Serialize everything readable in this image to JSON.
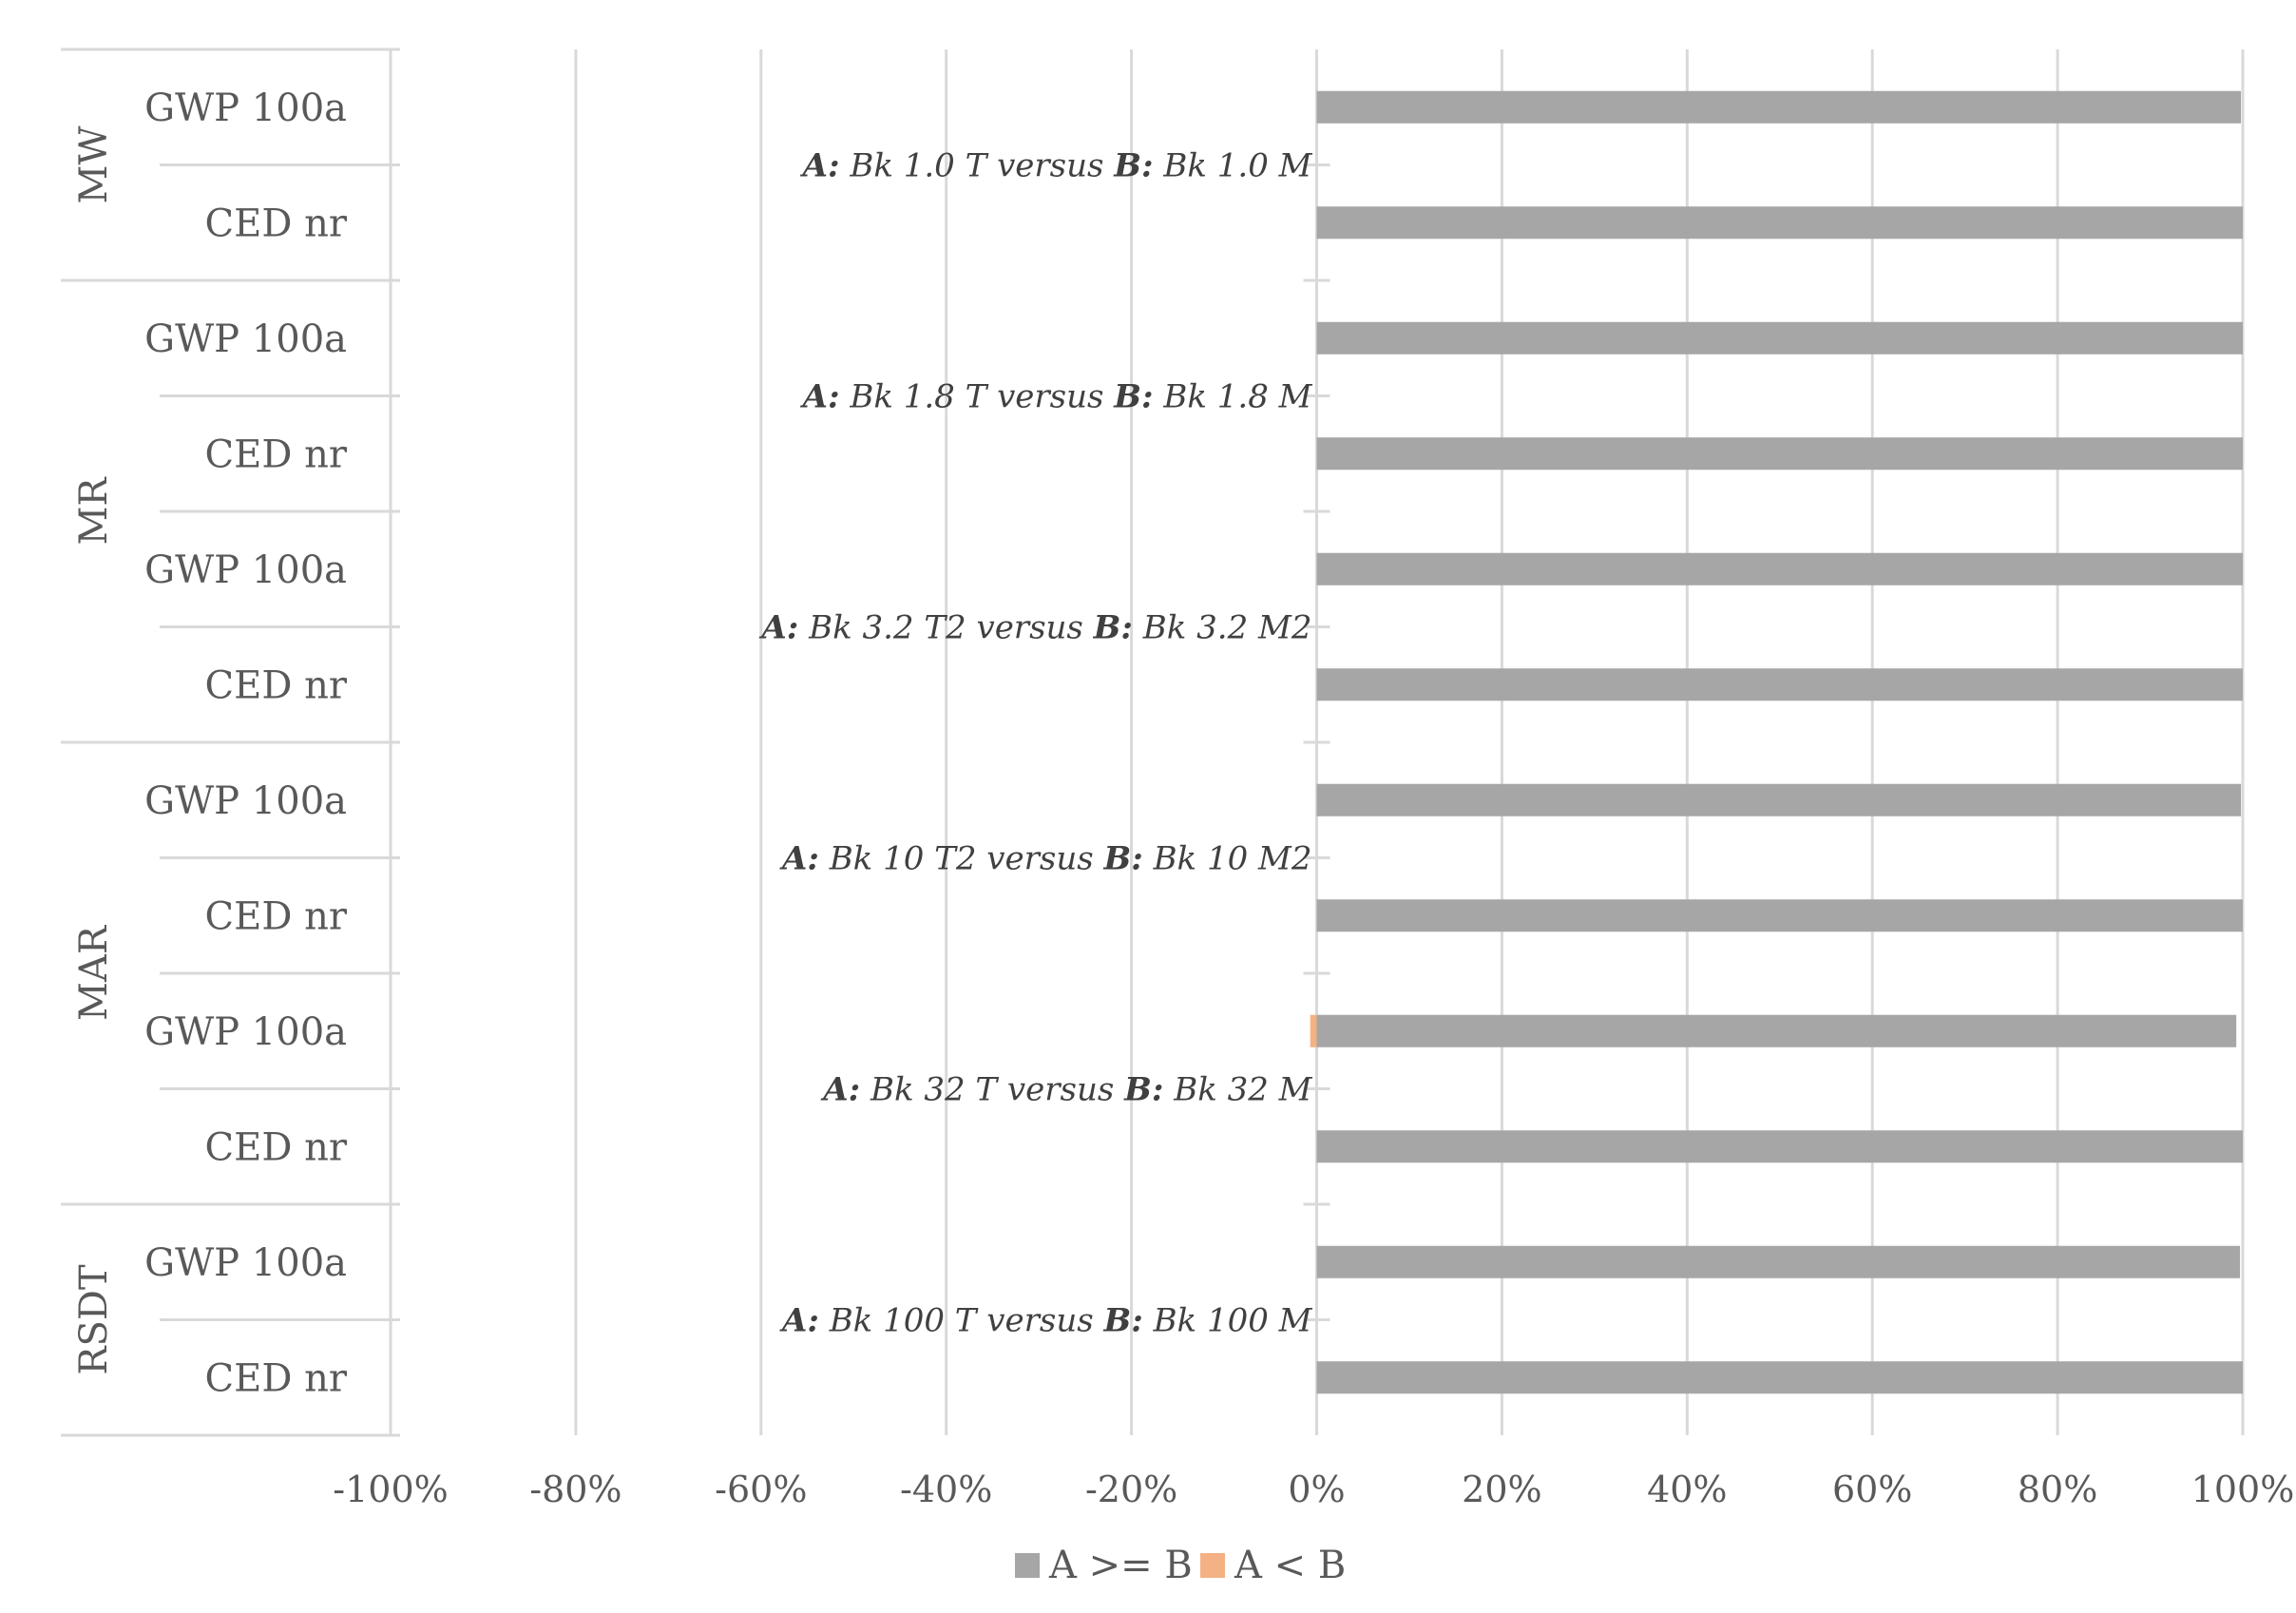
{
  "chart_data": {
    "type": "bar",
    "orientation": "horizontal",
    "stacked": true,
    "xlim": [
      -100,
      100
    ],
    "x_ticks": [
      "-100%",
      "-80%",
      "-60%",
      "-40%",
      "-20%",
      "0%",
      "20%",
      "40%",
      "60%",
      "80%",
      "100%"
    ],
    "grid": true,
    "legend_position": "bottom",
    "groups": [
      {
        "name": "MW",
        "rows": 2
      },
      {
        "name": "MR",
        "rows": 4
      },
      {
        "name": "MAR",
        "rows": 4
      },
      {
        "name": "RSDT",
        "rows": 2
      }
    ],
    "categories": [
      "GWP 100a",
      "CED nr",
      "GWP 100a",
      "CED nr",
      "GWP 100a",
      "CED nr",
      "GWP 100a",
      "CED nr",
      "GWP 100a",
      "CED nr",
      "GWP 100a",
      "CED nr"
    ],
    "series": [
      {
        "name": "A >= B",
        "color": "#a6a6a6",
        "values": [
          99.8,
          100,
          100,
          100,
          100,
          100,
          99.8,
          100,
          99.3,
          100,
          99.7,
          100
        ]
      },
      {
        "name": "A < B",
        "color": "#f4b183",
        "values": [
          0,
          0,
          0,
          0,
          0,
          0,
          0,
          0,
          -0.7,
          0,
          0,
          0
        ]
      }
    ],
    "annotations": [
      {
        "label_a": "A:",
        "text_a": " Bk 1.0 T versus ",
        "label_b": "B:",
        "text_b": " Bk 1.0 M",
        "between_rows": [
          0,
          1
        ]
      },
      {
        "label_a": "A:",
        "text_a": " Bk 1.8 T  versus ",
        "label_b": "B:",
        "text_b": " Bk 1.8 M",
        "between_rows": [
          2,
          3
        ]
      },
      {
        "label_a": "A:",
        "text_a": " Bk 3.2 T2 versus ",
        "label_b": "B:",
        "text_b": " Bk 3.2 M2",
        "between_rows": [
          4,
          5
        ]
      },
      {
        "label_a": "A:",
        "text_a": " Bk 10 T2 versus ",
        "label_b": "B:",
        "text_b": " Bk 10 M2",
        "between_rows": [
          6,
          7
        ]
      },
      {
        "label_a": "A:",
        "text_a": " Bk 32 T versus ",
        "label_b": "B:",
        "text_b": " Bk 32 M",
        "between_rows": [
          8,
          9
        ]
      },
      {
        "label_a": "A:",
        "text_a": " Bk 100 T versus ",
        "label_b": "B:",
        "text_b": " Bk 100 M",
        "between_rows": [
          10,
          11
        ]
      }
    ]
  }
}
